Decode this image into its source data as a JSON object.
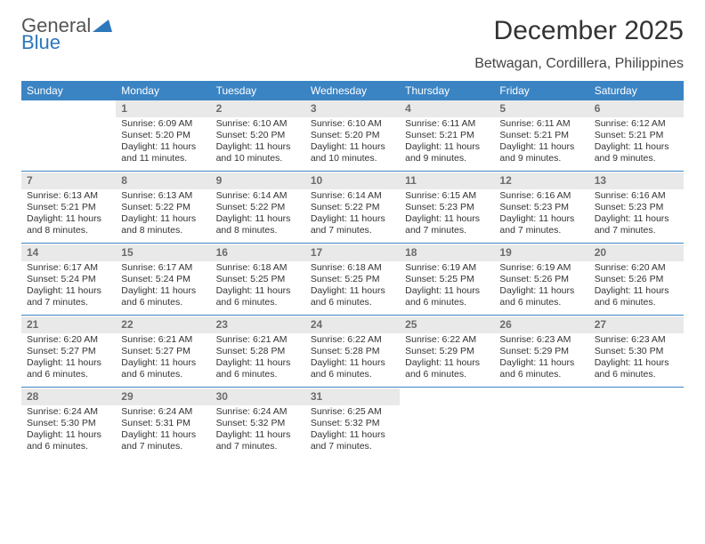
{
  "brand": {
    "name1": "General",
    "name2": "Blue",
    "blue_hex": "#2e77bb"
  },
  "title": "December 2025",
  "location": "Betwagan, Cordillera, Philippines",
  "colors": {
    "header_bg": "#3b84c4",
    "header_text": "#ffffff",
    "daynum_bg": "#e9e9e9",
    "daynum_text": "#6b6b6b",
    "sep": "#3b84c4",
    "body_text": "#333333"
  },
  "day_names": [
    "Sunday",
    "Monday",
    "Tuesday",
    "Wednesday",
    "Thursday",
    "Friday",
    "Saturday"
  ],
  "start_offset": 1,
  "days": [
    {
      "n": 1,
      "sr": "6:09 AM",
      "ss": "5:20 PM",
      "dl": "11 hours and 11 minutes."
    },
    {
      "n": 2,
      "sr": "6:10 AM",
      "ss": "5:20 PM",
      "dl": "11 hours and 10 minutes."
    },
    {
      "n": 3,
      "sr": "6:10 AM",
      "ss": "5:20 PM",
      "dl": "11 hours and 10 minutes."
    },
    {
      "n": 4,
      "sr": "6:11 AM",
      "ss": "5:21 PM",
      "dl": "11 hours and 9 minutes."
    },
    {
      "n": 5,
      "sr": "6:11 AM",
      "ss": "5:21 PM",
      "dl": "11 hours and 9 minutes."
    },
    {
      "n": 6,
      "sr": "6:12 AM",
      "ss": "5:21 PM",
      "dl": "11 hours and 9 minutes."
    },
    {
      "n": 7,
      "sr": "6:13 AM",
      "ss": "5:21 PM",
      "dl": "11 hours and 8 minutes."
    },
    {
      "n": 8,
      "sr": "6:13 AM",
      "ss": "5:22 PM",
      "dl": "11 hours and 8 minutes."
    },
    {
      "n": 9,
      "sr": "6:14 AM",
      "ss": "5:22 PM",
      "dl": "11 hours and 8 minutes."
    },
    {
      "n": 10,
      "sr": "6:14 AM",
      "ss": "5:22 PM",
      "dl": "11 hours and 7 minutes."
    },
    {
      "n": 11,
      "sr": "6:15 AM",
      "ss": "5:23 PM",
      "dl": "11 hours and 7 minutes."
    },
    {
      "n": 12,
      "sr": "6:16 AM",
      "ss": "5:23 PM",
      "dl": "11 hours and 7 minutes."
    },
    {
      "n": 13,
      "sr": "6:16 AM",
      "ss": "5:23 PM",
      "dl": "11 hours and 7 minutes."
    },
    {
      "n": 14,
      "sr": "6:17 AM",
      "ss": "5:24 PM",
      "dl": "11 hours and 7 minutes."
    },
    {
      "n": 15,
      "sr": "6:17 AM",
      "ss": "5:24 PM",
      "dl": "11 hours and 6 minutes."
    },
    {
      "n": 16,
      "sr": "6:18 AM",
      "ss": "5:25 PM",
      "dl": "11 hours and 6 minutes."
    },
    {
      "n": 17,
      "sr": "6:18 AM",
      "ss": "5:25 PM",
      "dl": "11 hours and 6 minutes."
    },
    {
      "n": 18,
      "sr": "6:19 AM",
      "ss": "5:25 PM",
      "dl": "11 hours and 6 minutes."
    },
    {
      "n": 19,
      "sr": "6:19 AM",
      "ss": "5:26 PM",
      "dl": "11 hours and 6 minutes."
    },
    {
      "n": 20,
      "sr": "6:20 AM",
      "ss": "5:26 PM",
      "dl": "11 hours and 6 minutes."
    },
    {
      "n": 21,
      "sr": "6:20 AM",
      "ss": "5:27 PM",
      "dl": "11 hours and 6 minutes."
    },
    {
      "n": 22,
      "sr": "6:21 AM",
      "ss": "5:27 PM",
      "dl": "11 hours and 6 minutes."
    },
    {
      "n": 23,
      "sr": "6:21 AM",
      "ss": "5:28 PM",
      "dl": "11 hours and 6 minutes."
    },
    {
      "n": 24,
      "sr": "6:22 AM",
      "ss": "5:28 PM",
      "dl": "11 hours and 6 minutes."
    },
    {
      "n": 25,
      "sr": "6:22 AM",
      "ss": "5:29 PM",
      "dl": "11 hours and 6 minutes."
    },
    {
      "n": 26,
      "sr": "6:23 AM",
      "ss": "5:29 PM",
      "dl": "11 hours and 6 minutes."
    },
    {
      "n": 27,
      "sr": "6:23 AM",
      "ss": "5:30 PM",
      "dl": "11 hours and 6 minutes."
    },
    {
      "n": 28,
      "sr": "6:24 AM",
      "ss": "5:30 PM",
      "dl": "11 hours and 6 minutes."
    },
    {
      "n": 29,
      "sr": "6:24 AM",
      "ss": "5:31 PM",
      "dl": "11 hours and 7 minutes."
    },
    {
      "n": 30,
      "sr": "6:24 AM",
      "ss": "5:32 PM",
      "dl": "11 hours and 7 minutes."
    },
    {
      "n": 31,
      "sr": "6:25 AM",
      "ss": "5:32 PM",
      "dl": "11 hours and 7 minutes."
    }
  ]
}
